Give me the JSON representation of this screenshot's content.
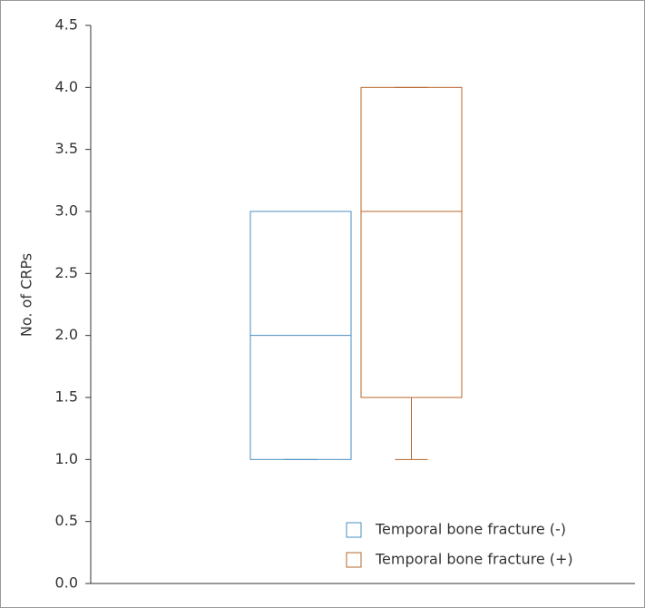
{
  "chart_data": {
    "type": "box",
    "y_label": "No. of CRPs",
    "ylim": [
      0,
      4.5
    ],
    "yticks": [
      {
        "value": 0,
        "label": "0.0"
      },
      0.5,
      {
        "value": 1,
        "label": "1.0"
      },
      1.5,
      {
        "value": 2,
        "label": "2.0"
      },
      2.5,
      {
        "value": 3,
        "label": "3.0"
      },
      3.5,
      {
        "value": 4,
        "label": "4.0"
      },
      4.5
    ],
    "legend": "lower-right",
    "series": [
      {
        "name": "Temporal bone fracture (-)",
        "color": "#4a8fc2",
        "min": 1,
        "q1": 1,
        "median": 2,
        "q3": 3,
        "max": 3
      },
      {
        "name": "Temporal bone fracture (+)",
        "color": "#b5652a",
        "min": 1,
        "q1": 1.5,
        "median": 3,
        "q3": 4,
        "max": 4
      }
    ]
  }
}
